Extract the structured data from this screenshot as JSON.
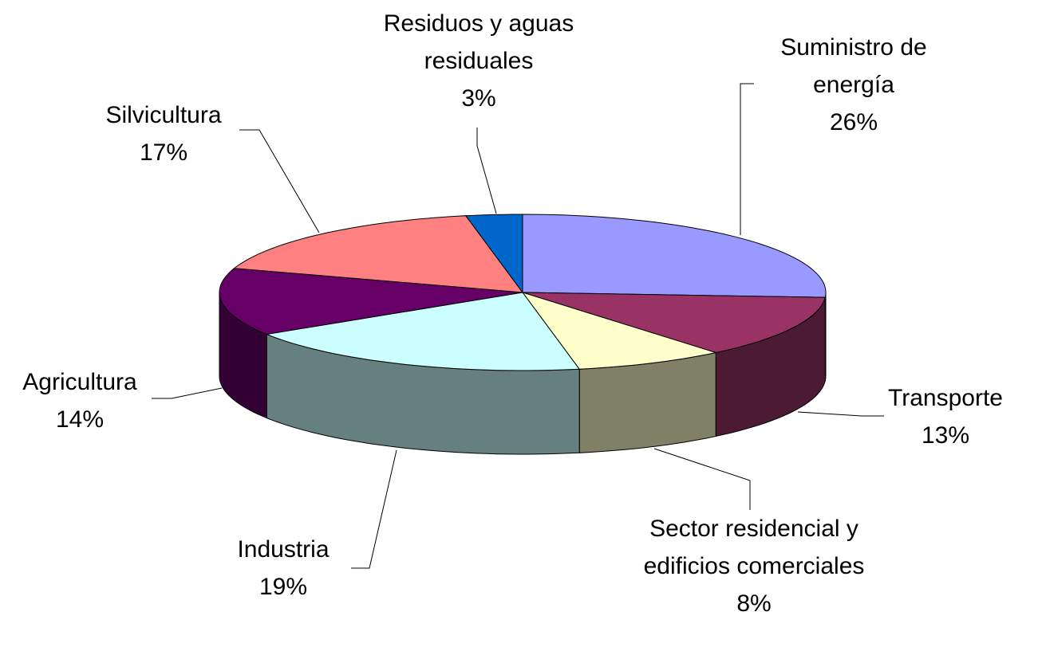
{
  "chart_data": {
    "type": "pie3d",
    "categories": [
      "Suministro de energía",
      "Transporte",
      "Sector residencial y edificios comerciales",
      "Industria",
      "Agricultura",
      "Silvicultura",
      "Residuos y aguas residuales"
    ],
    "values": [
      26,
      13,
      8,
      19,
      14,
      17,
      3
    ],
    "value_labels": [
      "26%",
      "13%",
      "8%",
      "19%",
      "14%",
      "17%",
      "3%"
    ],
    "colors": [
      "#9999ff",
      "#993366",
      "#ffffcc",
      "#ccffff",
      "#660066",
      "#ff8080",
      "#0066cc"
    ]
  }
}
